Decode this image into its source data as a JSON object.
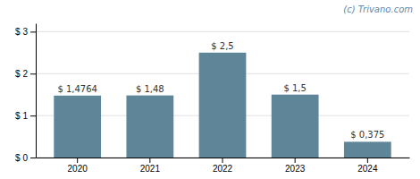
{
  "chart_data": {
    "type": "bar",
    "categories": [
      "2020",
      "2021",
      "2022",
      "2023",
      "2024"
    ],
    "values": [
      1.4764,
      1.48,
      2.5,
      1.5,
      0.375
    ],
    "value_labels": [
      "$ 1,4764",
      "$ 1,48",
      "$ 2,5",
      "$ 1,5",
      "$ 0,375"
    ],
    "data_labels": true,
    "color": "#5f8598",
    "ylim": [
      0,
      3.2
    ],
    "yticks": [
      {
        "value": 0,
        "label": "$ 0"
      },
      {
        "value": 1,
        "label": "$ 1"
      },
      {
        "value": 2,
        "label": "$ 2"
      },
      {
        "value": 3,
        "label": "$ 3"
      }
    ],
    "grid": true,
    "annotations": [
      "(c) Trivano.com"
    ]
  }
}
